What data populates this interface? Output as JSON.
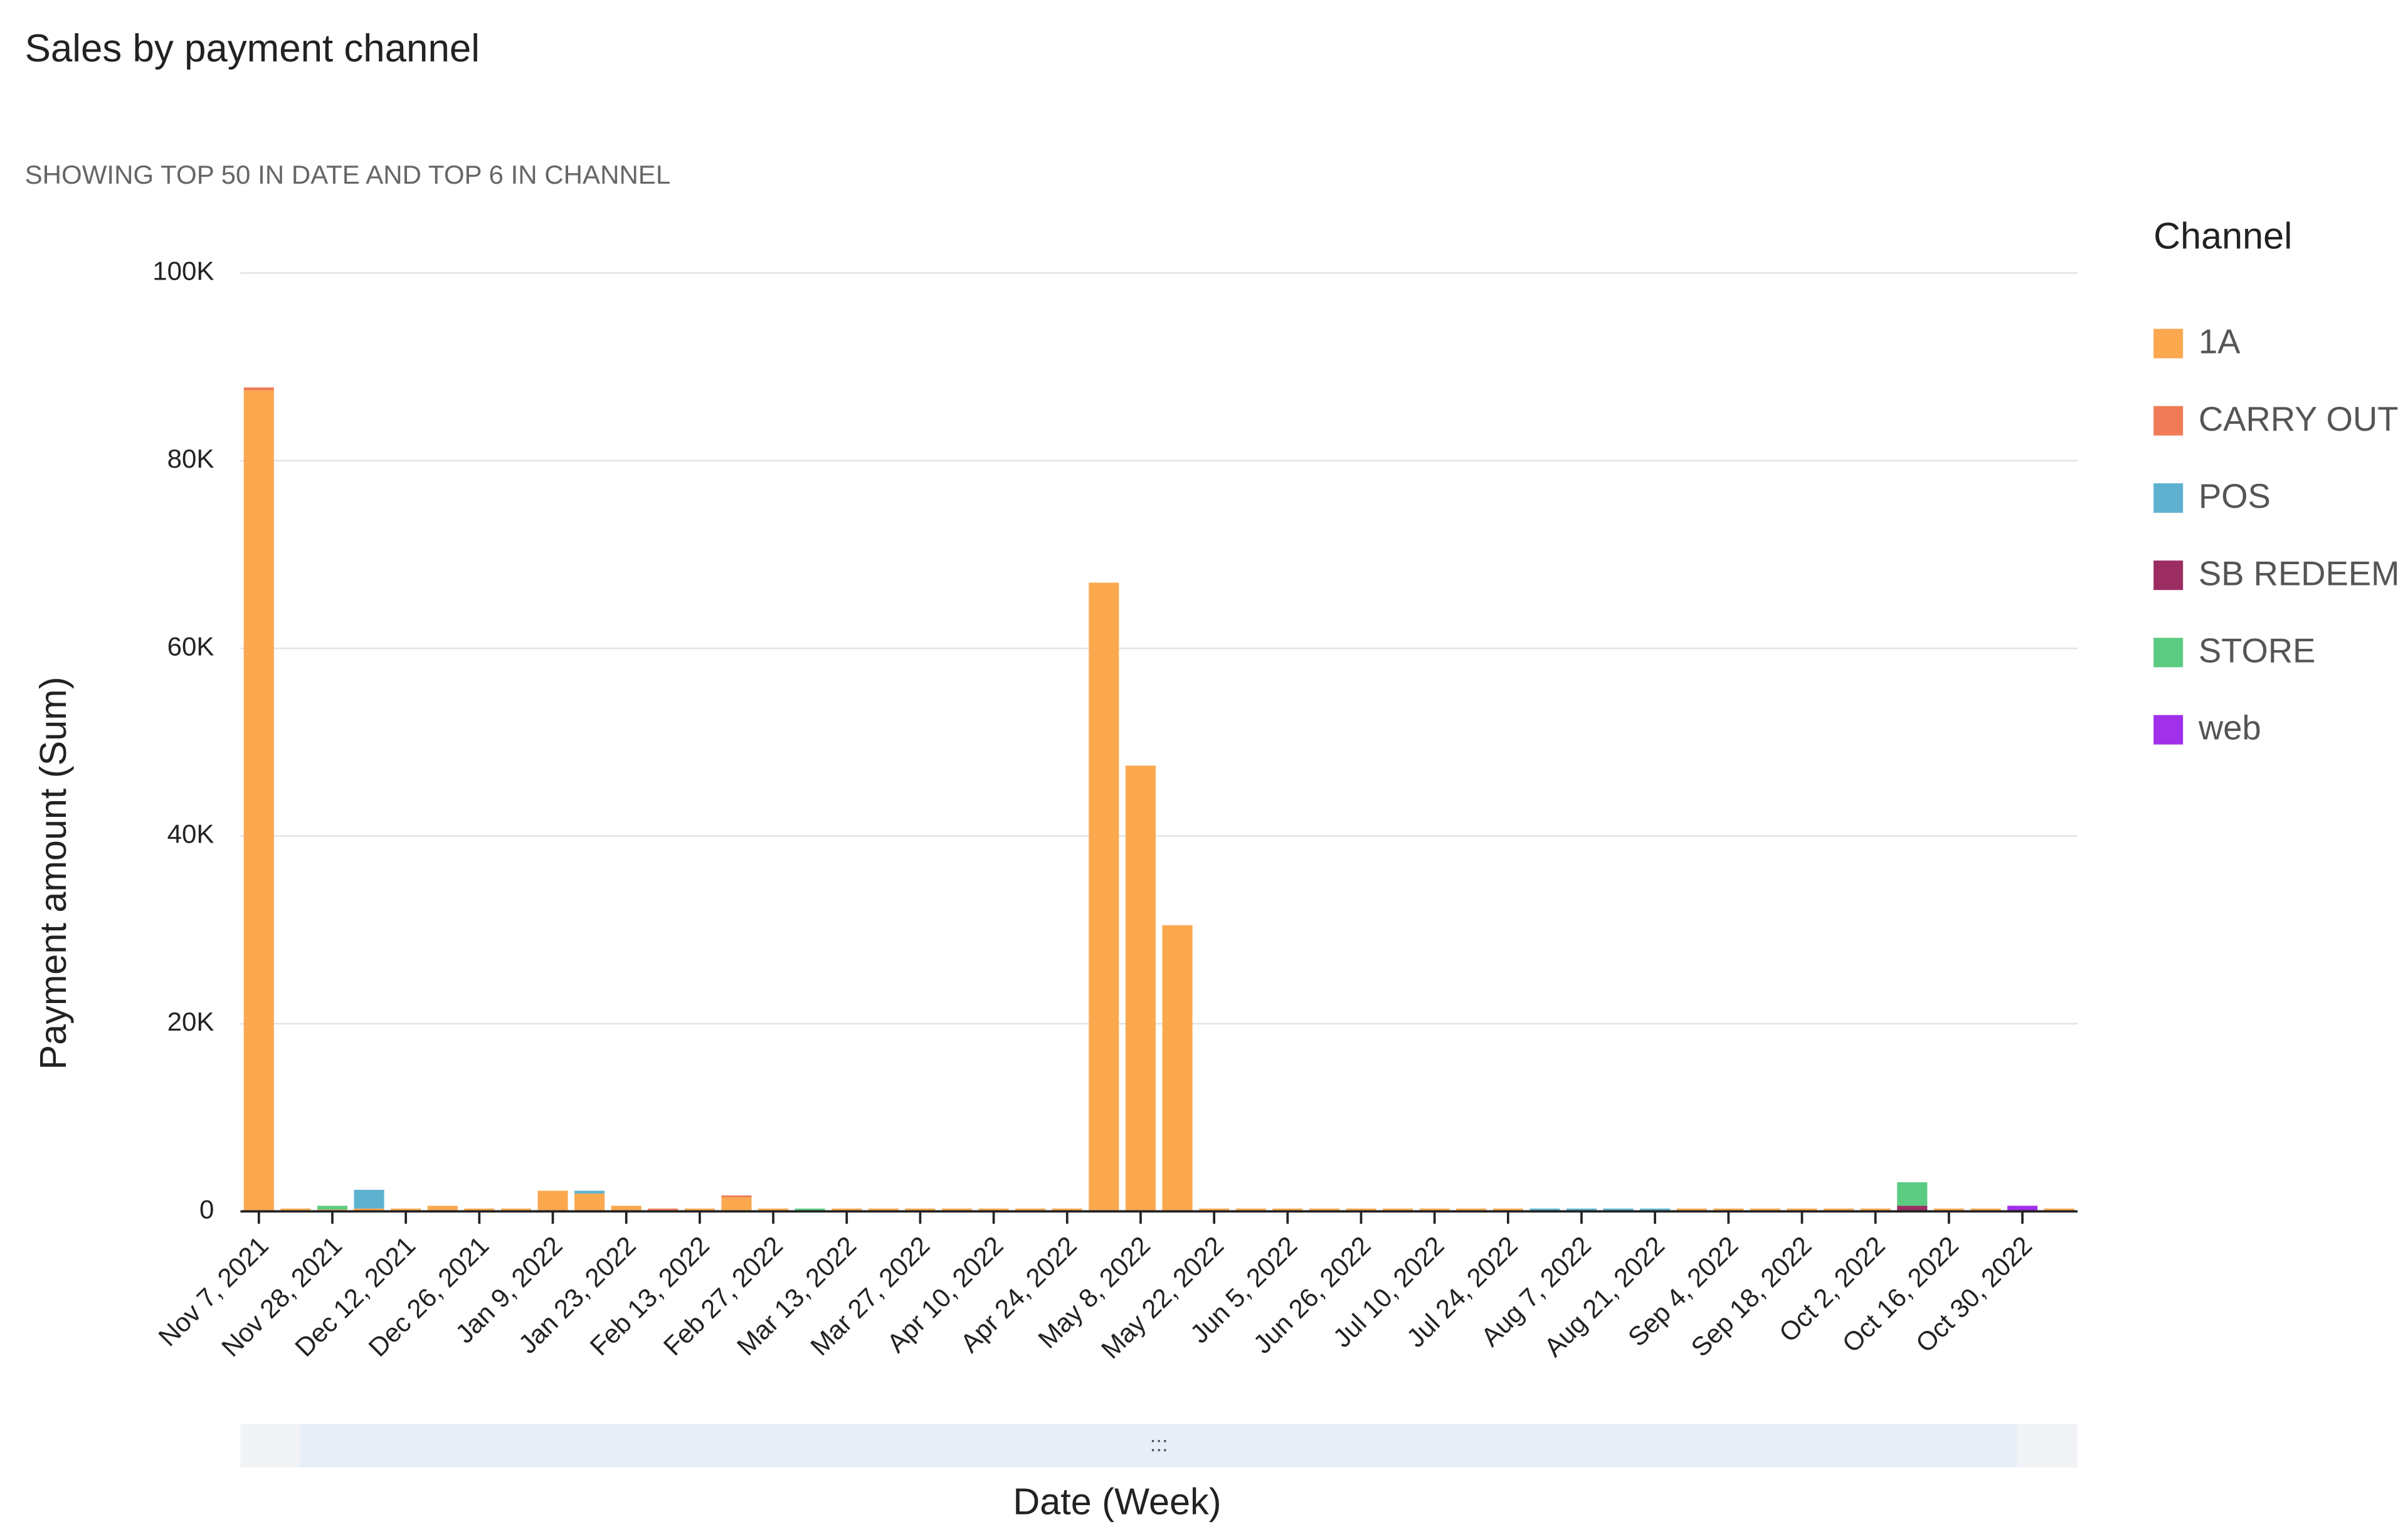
{
  "chart_data": {
    "type": "stacked_bar",
    "title": "Sales by payment channel",
    "subtitle": "SHOWING TOP 50 IN DATE AND TOP 6 IN CHANNEL",
    "x_label": "Date (Week)",
    "y_label": "Payment amount (Sum)",
    "legend_title": "Channel",
    "legend": "right",
    "grid": true,
    "scrollbar_handle": ":::",
    "categories": [
      "Nov 7, 2021",
      null,
      "Nov 28, 2021",
      null,
      "Dec 12, 2021",
      null,
      "Dec 26, 2021",
      null,
      "Jan 9, 2022",
      null,
      "Jan 23, 2022",
      null,
      "Feb 13, 2022",
      null,
      "Feb 27, 2022",
      null,
      "Mar 13, 2022",
      null,
      "Mar 27, 2022",
      null,
      "Apr 10, 2022",
      null,
      "Apr 24, 2022",
      null,
      "May 8, 2022",
      null,
      "May 22, 2022",
      null,
      "Jun 5, 2022",
      null,
      "Jun 26, 2022",
      null,
      "Jul 10, 2022",
      null,
      "Jul 24, 2022",
      null,
      "Aug 7, 2022",
      null,
      "Aug 21, 2022",
      null,
      "Sep 4, 2022",
      null,
      "Sep 18, 2022",
      null,
      "Oct 2, 2022",
      null,
      "Oct 16, 2022",
      null,
      "Oct 30, 2022",
      null
    ],
    "series": [
      {
        "name": "1A",
        "color": "#fba84f",
        "values": [
          87500,
          300,
          200,
          300,
          300,
          600,
          300,
          300,
          2200,
          1900,
          600,
          0,
          300,
          1500,
          300,
          0,
          300,
          300,
          300,
          300,
          300,
          300,
          300,
          67000,
          47500,
          30500,
          300,
          300,
          300,
          300,
          300,
          300,
          300,
          300,
          300,
          0,
          0,
          0,
          0,
          300,
          300,
          300,
          300,
          300,
          300,
          0,
          300,
          300,
          0,
          300
        ]
      },
      {
        "name": "CARRY OUT",
        "color": "#ef7c56",
        "values": [
          300,
          0,
          0,
          0,
          0,
          0,
          0,
          0,
          0,
          0,
          0,
          300,
          0,
          200,
          0,
          0,
          0,
          0,
          0,
          0,
          0,
          0,
          0,
          0,
          0,
          0,
          0,
          0,
          0,
          0,
          0,
          0,
          0,
          0,
          0,
          0,
          0,
          0,
          0,
          0,
          0,
          0,
          0,
          0,
          0,
          0,
          0,
          0,
          0,
          0
        ]
      },
      {
        "name": "POS",
        "color": "#5eb1cf",
        "values": [
          0,
          0,
          0,
          2000,
          0,
          0,
          0,
          0,
          0,
          300,
          0,
          0,
          0,
          0,
          0,
          0,
          0,
          0,
          0,
          0,
          0,
          0,
          0,
          0,
          0,
          0,
          0,
          0,
          0,
          0,
          0,
          0,
          0,
          0,
          0,
          300,
          300,
          300,
          300,
          0,
          0,
          0,
          0,
          0,
          0,
          0,
          0,
          0,
          0,
          0
        ]
      },
      {
        "name": "SB REDEEM",
        "color": "#9b2d62",
        "values": [
          0,
          0,
          0,
          0,
          0,
          0,
          0,
          0,
          0,
          0,
          0,
          0,
          0,
          0,
          0,
          0,
          0,
          0,
          0,
          0,
          0,
          0,
          0,
          0,
          0,
          0,
          0,
          0,
          0,
          0,
          0,
          0,
          0,
          0,
          0,
          0,
          0,
          0,
          0,
          0,
          0,
          0,
          0,
          0,
          0,
          600,
          0,
          0,
          0,
          0
        ]
      },
      {
        "name": "STORE",
        "color": "#5ccb82",
        "values": [
          0,
          0,
          400,
          0,
          0,
          0,
          0,
          0,
          0,
          0,
          0,
          0,
          0,
          0,
          0,
          300,
          0,
          0,
          0,
          0,
          0,
          0,
          0,
          0,
          0,
          0,
          0,
          0,
          0,
          0,
          0,
          0,
          0,
          0,
          0,
          0,
          0,
          0,
          0,
          0,
          0,
          0,
          0,
          0,
          0,
          2500,
          0,
          0,
          0,
          0
        ]
      },
      {
        "name": "web",
        "color": "#a030ea",
        "values": [
          0,
          0,
          0,
          0,
          0,
          0,
          0,
          0,
          0,
          0,
          0,
          0,
          0,
          0,
          0,
          0,
          0,
          0,
          0,
          0,
          0,
          0,
          0,
          0,
          0,
          0,
          0,
          0,
          0,
          0,
          0,
          0,
          0,
          0,
          0,
          0,
          0,
          0,
          0,
          0,
          0,
          0,
          0,
          0,
          0,
          0,
          0,
          0,
          600,
          0
        ]
      }
    ],
    "ylim": [
      0,
      100000
    ],
    "yticks": [
      {
        "value": 0,
        "label": "0"
      },
      {
        "value": 20000,
        "label": "20K"
      },
      {
        "value": 40000,
        "label": "40K"
      },
      {
        "value": 60000,
        "label": "60K"
      },
      {
        "value": 80000,
        "label": "80K"
      },
      {
        "value": 100000,
        "label": "100K"
      }
    ]
  }
}
